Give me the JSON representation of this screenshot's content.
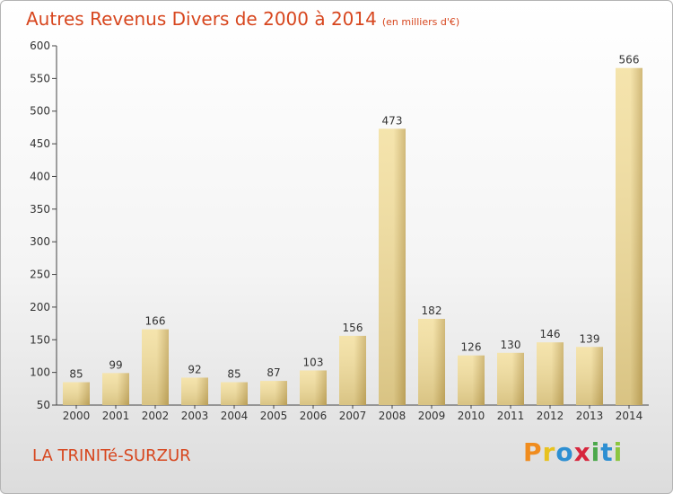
{
  "header": {
    "title": "Autres Revenus Divers de 2000 à 2014",
    "unit": "(en milliers d'€)"
  },
  "footer": {
    "commune": "LA TRINITé-SURZUR",
    "brand_letters": [
      "P",
      "r",
      "o",
      "x",
      "i",
      "t",
      "i"
    ],
    "brand_colors": [
      "#f08c1e",
      "#e8c21e",
      "#2d8fd2",
      "#d7263d",
      "#4aa84a",
      "#2d8fd2",
      "#8cc63f"
    ]
  },
  "colors": {
    "title": "#d7461e",
    "bar_light": "#f3df9e",
    "bar_dark": "#c9ad62",
    "axis": "#444444",
    "grid": "#cccccc"
  },
  "chart_data": {
    "type": "bar",
    "title": "Autres Revenus Divers de 2000 à 2014",
    "subtitle": "(en milliers d'€)",
    "categories": [
      "2000",
      "2001",
      "2002",
      "2003",
      "2004",
      "2005",
      "2006",
      "2007",
      "2008",
      "2009",
      "2010",
      "2011",
      "2012",
      "2013",
      "2014"
    ],
    "values": [
      85,
      99,
      166,
      92,
      85,
      87,
      103,
      156,
      473,
      182,
      126,
      130,
      146,
      139,
      566
    ],
    "ylim": [
      50,
      600
    ],
    "yticks": [
      50,
      100,
      150,
      200,
      250,
      300,
      350,
      400,
      450,
      500,
      550,
      600
    ],
    "grid": false,
    "data_labels": true
  }
}
